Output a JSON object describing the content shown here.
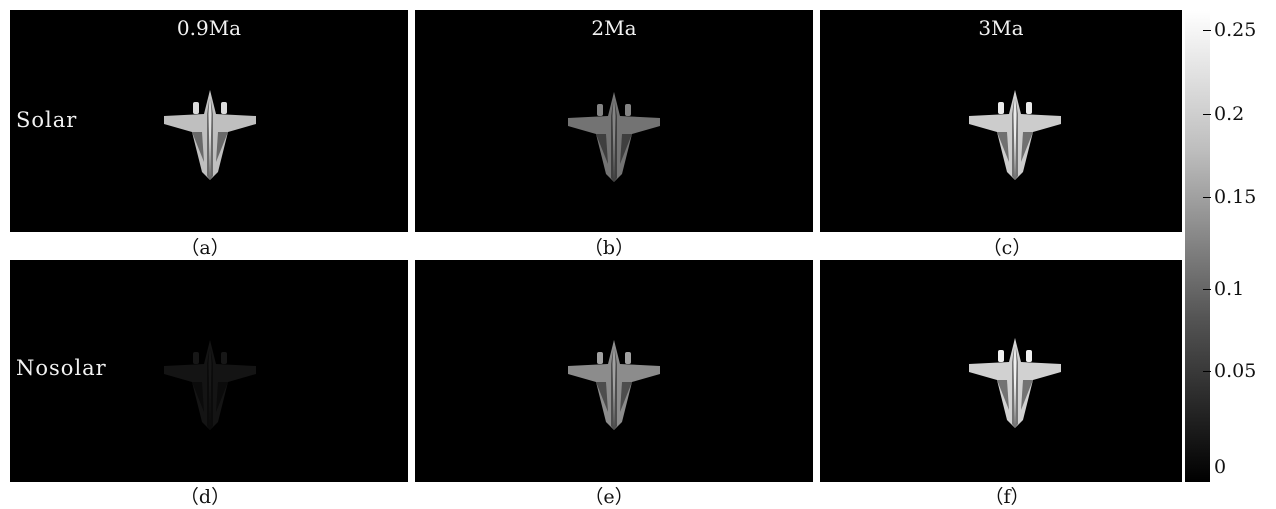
{
  "columns": [
    "0.9Ma",
    "2Ma",
    "3Ma"
  ],
  "rows": [
    "Solar",
    "Nosolar"
  ],
  "captions": [
    "（a）",
    "（b）",
    "（c）",
    "（d）",
    "（e）",
    "（f）"
  ],
  "colorbar": {
    "ticks": [
      "0.25",
      "0.2",
      "0.15",
      "0.1",
      "0.05",
      "0"
    ],
    "min": 0,
    "max": 0.25,
    "colormap": [
      "#000000",
      "#ffffff"
    ]
  },
  "brightness": {
    "a": 0.75,
    "b": 0.45,
    "c": 0.8,
    "d": 0.08,
    "e": 0.55,
    "f": 0.82
  }
}
